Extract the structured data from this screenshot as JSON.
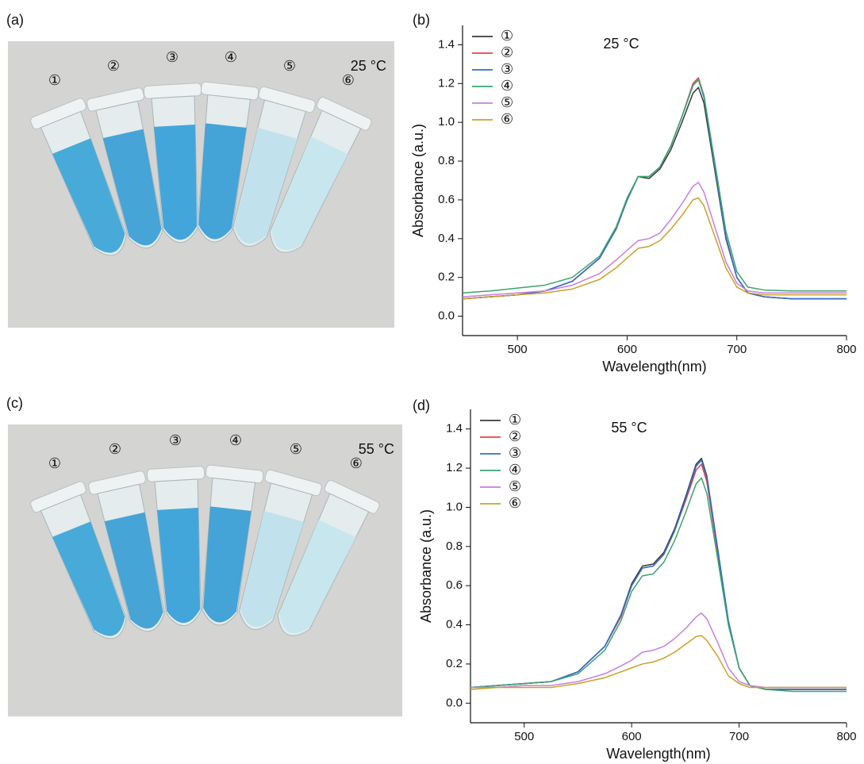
{
  "photos": [
    {
      "panel_label": "(a)",
      "temperature": "25 °C",
      "tubes": [
        "①",
        "②",
        "③",
        "④",
        "⑤",
        "⑥"
      ]
    },
    {
      "panel_label": "(c)",
      "temperature": "55 °C",
      "tubes": [
        "①",
        "②",
        "③",
        "④",
        "⑤",
        "⑥"
      ]
    }
  ],
  "chart_data": [
    {
      "type": "line",
      "panel_label": "(b)",
      "annotation": "25 °C",
      "x_label": "Wavelength(nm)",
      "y_label": "Absorbance (a.u.)",
      "xlim": [
        450,
        800
      ],
      "xticks": [
        500,
        600,
        700,
        800
      ],
      "ylim": [
        -0.1,
        1.5
      ],
      "yticks": [
        {
          "value": 0,
          "label": "0.0"
        },
        0.2,
        0.4,
        0.6,
        0.8,
        {
          "value": 1,
          "label": "1.0"
        },
        1.2,
        1.4
      ],
      "legend": "upper-left",
      "x": [
        450,
        475,
        500,
        525,
        550,
        575,
        590,
        600,
        610,
        620,
        630,
        640,
        650,
        660,
        665,
        670,
        680,
        690,
        700,
        710,
        725,
        750,
        775,
        800
      ],
      "series": [
        {
          "name": "①",
          "color": "#3a3a3a",
          "values": [
            0.09,
            0.1,
            0.11,
            0.13,
            0.18,
            0.3,
            0.45,
            0.6,
            0.72,
            0.71,
            0.76,
            0.86,
            1.0,
            1.15,
            1.18,
            1.1,
            0.75,
            0.4,
            0.2,
            0.12,
            0.1,
            0.09,
            0.09,
            0.09
          ]
        },
        {
          "name": "②",
          "color": "#e8414a",
          "values": [
            0.09,
            0.1,
            0.11,
            0.13,
            0.18,
            0.3,
            0.45,
            0.6,
            0.72,
            0.72,
            0.77,
            0.88,
            1.03,
            1.2,
            1.23,
            1.14,
            0.77,
            0.41,
            0.2,
            0.12,
            0.1,
            0.09,
            0.09,
            0.09
          ]
        },
        {
          "name": "③",
          "color": "#2d6fd1",
          "values": [
            0.09,
            0.1,
            0.11,
            0.13,
            0.18,
            0.3,
            0.45,
            0.6,
            0.72,
            0.72,
            0.77,
            0.88,
            1.03,
            1.19,
            1.22,
            1.13,
            0.77,
            0.41,
            0.2,
            0.12,
            0.1,
            0.09,
            0.09,
            0.09
          ]
        },
        {
          "name": "④",
          "color": "#3aa56c",
          "values": [
            0.12,
            0.13,
            0.145,
            0.16,
            0.2,
            0.31,
            0.46,
            0.61,
            0.72,
            0.72,
            0.77,
            0.88,
            1.03,
            1.19,
            1.22,
            1.14,
            0.79,
            0.44,
            0.23,
            0.15,
            0.135,
            0.13,
            0.13,
            0.13
          ]
        },
        {
          "name": "⑤",
          "color": "#c77fe0",
          "values": [
            0.1,
            0.11,
            0.12,
            0.13,
            0.16,
            0.22,
            0.29,
            0.34,
            0.39,
            0.4,
            0.43,
            0.5,
            0.58,
            0.67,
            0.69,
            0.64,
            0.46,
            0.28,
            0.17,
            0.13,
            0.12,
            0.12,
            0.12,
            0.12
          ]
        },
        {
          "name": "⑥",
          "color": "#c9a227",
          "values": [
            0.09,
            0.1,
            0.11,
            0.12,
            0.14,
            0.19,
            0.25,
            0.3,
            0.35,
            0.36,
            0.39,
            0.45,
            0.52,
            0.6,
            0.61,
            0.57,
            0.41,
            0.25,
            0.15,
            0.12,
            0.11,
            0.11,
            0.11,
            0.11
          ]
        }
      ]
    },
    {
      "type": "line",
      "panel_label": "(d)",
      "annotation": "55 °C",
      "x_label": "Wavelength(nm)",
      "y_label": "Absorbance (a.u.)",
      "xlim": [
        450,
        800
      ],
      "xticks": [
        500,
        600,
        700,
        800
      ],
      "ylim": [
        -0.1,
        1.5
      ],
      "yticks": [
        {
          "value": 0,
          "label": "0.0"
        },
        0.2,
        0.4,
        0.6,
        0.8,
        {
          "value": 1,
          "label": "1.0"
        },
        1.2,
        1.4
      ],
      "legend": "upper-left",
      "x": [
        450,
        475,
        500,
        525,
        550,
        575,
        590,
        600,
        610,
        620,
        630,
        640,
        650,
        660,
        665,
        670,
        680,
        690,
        700,
        710,
        725,
        750,
        775,
        800
      ],
      "series": [
        {
          "name": "①",
          "color": "#3a3a3a",
          "values": [
            0.08,
            0.09,
            0.1,
            0.11,
            0.16,
            0.29,
            0.45,
            0.61,
            0.7,
            0.71,
            0.77,
            0.89,
            1.05,
            1.22,
            1.25,
            1.16,
            0.79,
            0.42,
            0.18,
            0.09,
            0.07,
            0.07,
            0.07,
            0.07
          ]
        },
        {
          "name": "②",
          "color": "#e8414a",
          "values": [
            0.08,
            0.09,
            0.1,
            0.11,
            0.16,
            0.29,
            0.44,
            0.6,
            0.69,
            0.7,
            0.76,
            0.88,
            1.03,
            1.19,
            1.22,
            1.13,
            0.77,
            0.41,
            0.18,
            0.09,
            0.07,
            0.07,
            0.07,
            0.07
          ]
        },
        {
          "name": "③",
          "color": "#2d6fd1",
          "values": [
            0.08,
            0.09,
            0.1,
            0.11,
            0.16,
            0.29,
            0.45,
            0.6,
            0.69,
            0.7,
            0.76,
            0.88,
            1.04,
            1.21,
            1.24,
            1.15,
            0.79,
            0.42,
            0.18,
            0.09,
            0.07,
            0.07,
            0.07,
            0.07
          ]
        },
        {
          "name": "④",
          "color": "#3aa56c",
          "values": [
            0.08,
            0.09,
            0.1,
            0.11,
            0.15,
            0.27,
            0.42,
            0.57,
            0.65,
            0.66,
            0.72,
            0.83,
            0.97,
            1.12,
            1.15,
            1.07,
            0.74,
            0.4,
            0.18,
            0.09,
            0.07,
            0.06,
            0.06,
            0.06
          ]
        },
        {
          "name": "⑤",
          "color": "#c77fe0",
          "values": [
            0.08,
            0.08,
            0.09,
            0.09,
            0.11,
            0.15,
            0.19,
            0.22,
            0.26,
            0.27,
            0.29,
            0.33,
            0.38,
            0.44,
            0.46,
            0.43,
            0.31,
            0.18,
            0.11,
            0.09,
            0.08,
            0.08,
            0.08,
            0.08
          ]
        },
        {
          "name": "⑥",
          "color": "#c9a227",
          "values": [
            0.07,
            0.08,
            0.08,
            0.08,
            0.1,
            0.13,
            0.16,
            0.18,
            0.2,
            0.21,
            0.23,
            0.26,
            0.3,
            0.34,
            0.345,
            0.32,
            0.24,
            0.14,
            0.1,
            0.08,
            0.08,
            0.08,
            0.08,
            0.08
          ]
        }
      ]
    }
  ]
}
